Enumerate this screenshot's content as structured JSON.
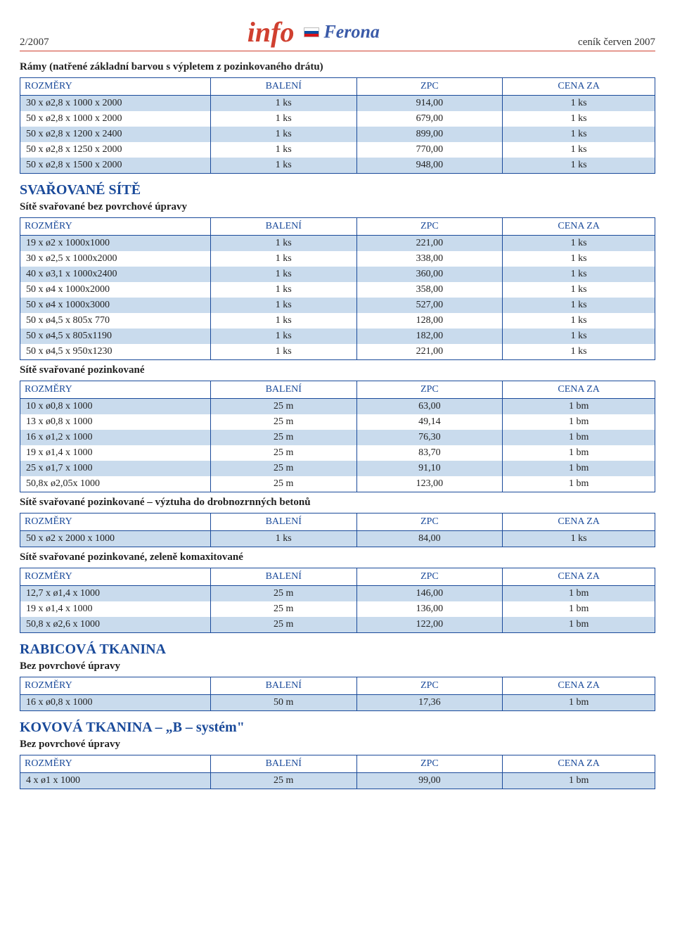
{
  "header": {
    "issue": "2/2007",
    "info_word": "info",
    "brand": "Ferona",
    "right": "ceník červen 2007"
  },
  "columns": {
    "rozm": "ROZMĚRY",
    "bal": "BALENÍ",
    "zpc": "ZPC",
    "cena": "CENA ZA"
  },
  "sections": [
    {
      "title_bold": "Rámy (natřené základní barvou s výpletem z pozinkovaného drátu)",
      "rows": [
        [
          "30 x ø2,8 x 1000 x 2000",
          "1 ks",
          "914,00",
          "1 ks"
        ],
        [
          "50 x ø2,8 x 1000 x 2000",
          "1 ks",
          "679,00",
          "1 ks"
        ],
        [
          "50 x ø2,8 x 1200 x 2400",
          "1 ks",
          "899,00",
          "1 ks"
        ],
        [
          "50 x ø2,8 x 1250 x 2000",
          "1 ks",
          "770,00",
          "1 ks"
        ],
        [
          "50 x ø2,8 x 1500 x 2000",
          "1 ks",
          "948,00",
          "1 ks"
        ]
      ]
    },
    {
      "title_blue": "SVAŘOVANÉ SÍTĚ",
      "subtitle": "Sítě svařované bez povrchové úpravy",
      "rows": [
        [
          "19 x ø2   x 1000x1000",
          "1 ks",
          "221,00",
          "1 ks"
        ],
        [
          "30 x ø2,5 x 1000x2000",
          "1 ks",
          "338,00",
          "1 ks"
        ],
        [
          "40 x ø3,1 x 1000x2400",
          "1 ks",
          "360,00",
          "1 ks"
        ],
        [
          "50 x ø4   x 1000x2000",
          "1 ks",
          "358,00",
          "1 ks"
        ],
        [
          "50 x ø4   x 1000x3000",
          "1 ks",
          "527,00",
          "1 ks"
        ],
        [
          "50 x ø4,5 x  805x 770",
          "1 ks",
          "128,00",
          "1 ks"
        ],
        [
          "50 x ø4,5 x  805x1190",
          "1 ks",
          "182,00",
          "1 ks"
        ],
        [
          "50 x ø4,5 x  950x1230",
          "1 ks",
          "221,00",
          "1 ks"
        ]
      ]
    },
    {
      "subtitle": "Sítě svařované pozinkované",
      "rows": [
        [
          "10  x ø0,8 x 1000",
          "25 m",
          "63,00",
          "1 bm"
        ],
        [
          "13  x ø0,8 x 1000",
          "25 m",
          "49,14",
          "1 bm"
        ],
        [
          "16  x ø1,2 x 1000",
          "25 m",
          "76,30",
          "1 bm"
        ],
        [
          "19  x ø1,4 x 1000",
          "25 m",
          "83,70",
          "1 bm"
        ],
        [
          "25  x ø1,7 x 1000",
          "25 m",
          "91,10",
          "1 bm"
        ],
        [
          "50,8x ø2,05x 1000",
          "25 m",
          "123,00",
          "1 bm"
        ]
      ]
    },
    {
      "subtitle": "Sítě svařované pozinkované – výztuha do drobnozrnných betonů",
      "rows": [
        [
          "50 x ø2 x 2000 x 1000",
          "1 ks",
          "84,00",
          "1 ks"
        ]
      ]
    },
    {
      "subtitle": "Sítě svařované pozinkované, zeleně komaxitované",
      "rows": [
        [
          "12,7 x ø1,4 x 1000",
          "25 m",
          "146,00",
          "1 bm"
        ],
        [
          "19 x ø1,4 x 1000",
          "25 m",
          "136,00",
          "1 bm"
        ],
        [
          "50,8 x ø2,6 x 1000",
          "25 m",
          "122,00",
          "1 bm"
        ]
      ]
    },
    {
      "title_blue": "RABICOVÁ TKANINA",
      "subtitle": "Bez povrchové úpravy",
      "rows": [
        [
          "16 x ø0,8 x 1000",
          "50 m",
          "17,36",
          "1 bm"
        ]
      ]
    },
    {
      "title_blue": "KOVOVÁ TKANINA – „B – systém\"",
      "subtitle": "Bez povrchové úpravy",
      "rows": [
        [
          "4 x ø1 x 1000",
          "25 m",
          "99,00",
          "1 bm"
        ]
      ]
    }
  ]
}
